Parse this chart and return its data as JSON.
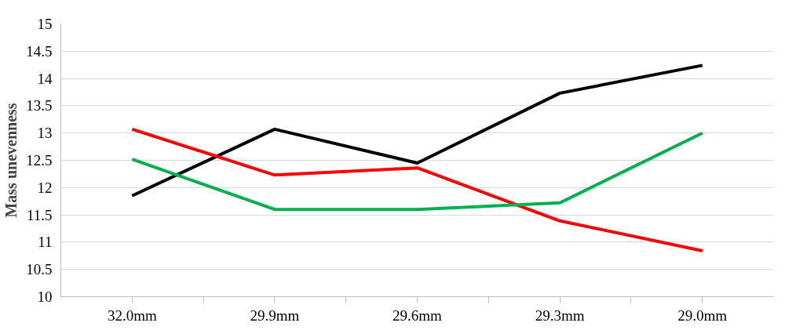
{
  "chart_data": {
    "type": "line",
    "ylabel": "Mass unevenness",
    "categories": [
      "32.0mm",
      "29.9mm",
      "29.6mm",
      "29.3mm",
      "29.0mm"
    ],
    "series": [
      {
        "color": "#000000",
        "values": [
          11.85,
          13.07,
          12.45,
          13.73,
          14.24
        ]
      },
      {
        "color": "#ff0000",
        "values": [
          13.07,
          12.23,
          12.36,
          11.39,
          10.84
        ]
      },
      {
        "color": "#00b050",
        "values": [
          12.52,
          11.6,
          11.6,
          11.72,
          13.0
        ]
      }
    ],
    "ylim": [
      10,
      15
    ],
    "yticks": [
      10,
      10.5,
      11,
      11.5,
      12,
      12.5,
      13,
      13.5,
      14,
      14.5,
      15
    ],
    "grid": "y",
    "marker": "none",
    "line_style": "solid"
  }
}
